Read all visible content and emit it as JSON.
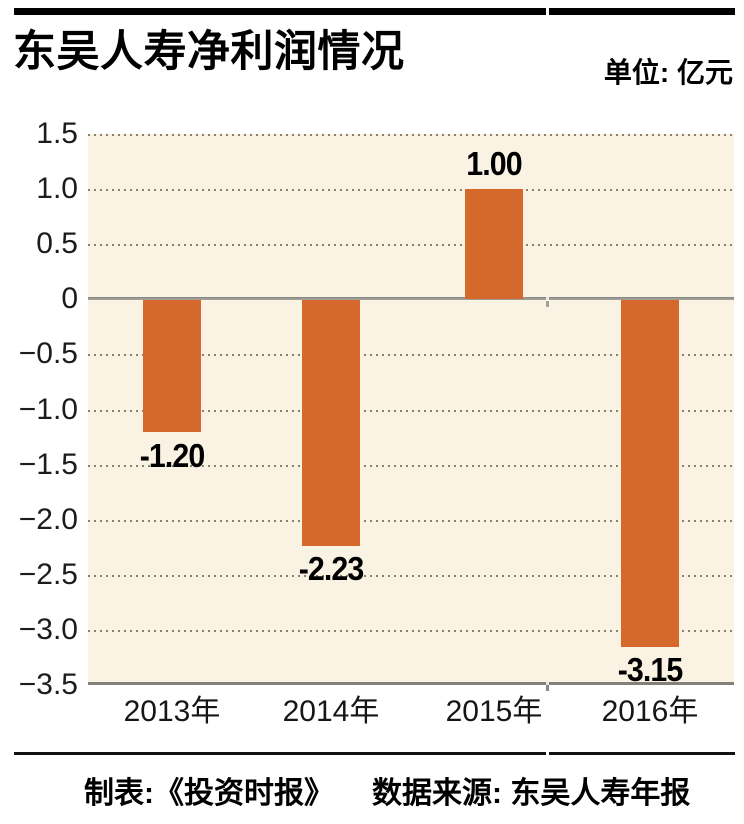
{
  "header": {
    "title": "东吴人寿净利润情况",
    "unit_label": "单位: 亿元"
  },
  "chart_data": {
    "type": "bar",
    "title": "东吴人寿净利润情况",
    "unit": "亿元",
    "categories": [
      "2013年",
      "2014年",
      "2015年",
      "2016年"
    ],
    "values": [
      -1.2,
      -2.23,
      1.0,
      -3.15
    ],
    "value_labels": [
      "-1.20",
      "-2.23",
      "1.00",
      "-3.15"
    ],
    "xlabel": "",
    "ylabel": "",
    "ylim": [
      -3.5,
      1.5
    ],
    "ytick_step": 0.5,
    "ytick_labels": [
      "1.5",
      "1.0",
      "0.5",
      "0",
      "−0.5",
      "−1.0",
      "−1.5",
      "−2.0",
      "−2.5",
      "−3.0",
      "−3.5"
    ],
    "grid": "horizontal-dotted",
    "legend": "none",
    "bar_color": "#d5692c",
    "plot_background": "#faf2e3",
    "zero_line_color": "#9e9c97"
  },
  "footer": {
    "credit": "制表:《投资时报》",
    "source": "数据来源: 东吴人寿年报"
  }
}
